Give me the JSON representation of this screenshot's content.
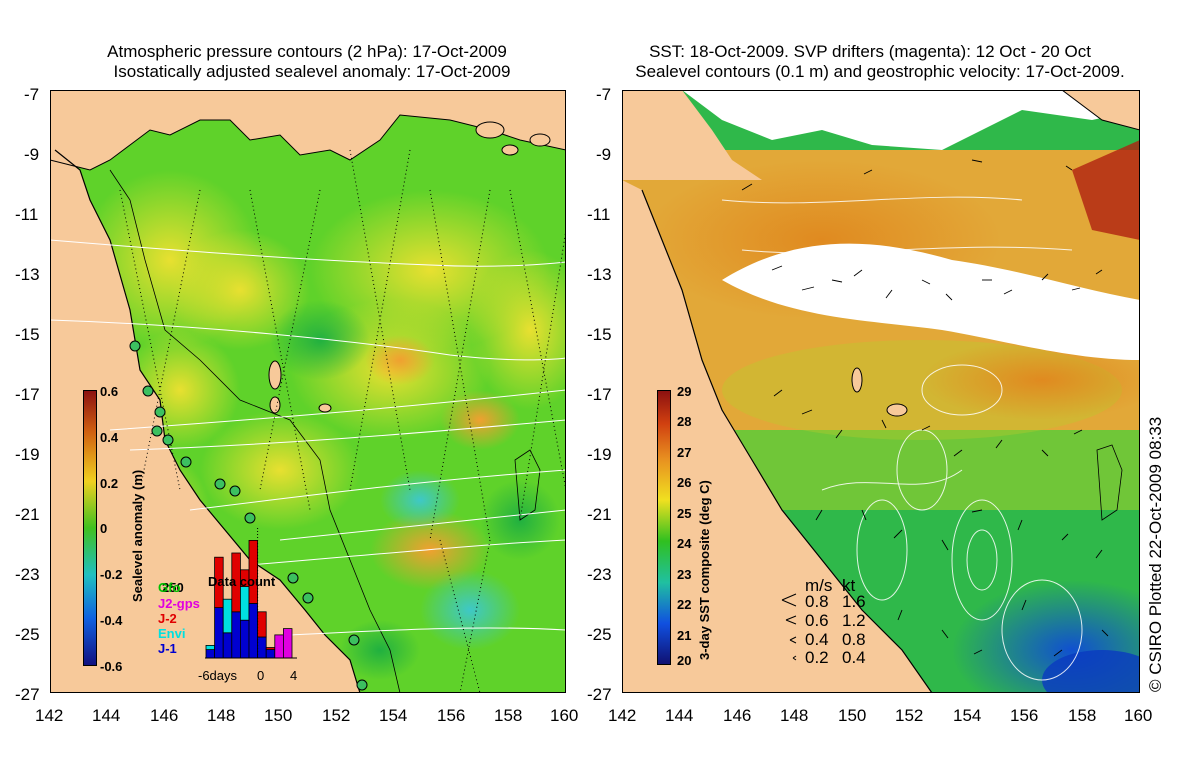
{
  "left_panel": {
    "title_line1": "Atmospheric pressure contours (2 hPa): 17-Oct-2009",
    "title_line2": "Isostatically adjusted sealevel anomaly: 17-Oct-2009",
    "colorbar": {
      "label": "Sealevel anomaly (m)",
      "ticks": [
        "0.6",
        "0.4",
        "0.2",
        "0",
        "-0.2",
        "-0.4",
        "-0.6"
      ]
    },
    "data_count": {
      "title": "Data count",
      "max_label": "250",
      "x_ticks": [
        "-6days",
        "0",
        "4"
      ],
      "legend": [
        {
          "label": "Gfo",
          "color": "#00c000"
        },
        {
          "label": "J2-gps",
          "color": "#e000e0"
        },
        {
          "label": "J-2",
          "color": "#e00000"
        },
        {
          "label": "Envi",
          "color": "#00e0e0"
        },
        {
          "label": "J-1",
          "color": "#0000d0"
        }
      ],
      "bars": [
        {
          "day": -6,
          "segments": [
            {
              "sat": "J-1",
              "value": 20
            },
            {
              "sat": "Envi",
              "value": 10
            }
          ]
        },
        {
          "day": -5,
          "segments": [
            {
              "sat": "J-1",
              "value": 120
            },
            {
              "sat": "J-2",
              "value": 120
            }
          ]
        },
        {
          "day": -4,
          "segments": [
            {
              "sat": "J-1",
              "value": 60
            },
            {
              "sat": "Envi",
              "value": 80
            }
          ]
        },
        {
          "day": -3,
          "segments": [
            {
              "sat": "J-1",
              "value": 110
            },
            {
              "sat": "J-2",
              "value": 140
            }
          ]
        },
        {
          "day": -2,
          "segments": [
            {
              "sat": "J-1",
              "value": 90
            },
            {
              "sat": "Envi",
              "value": 80
            },
            {
              "sat": "J-2",
              "value": 40
            }
          ]
        },
        {
          "day": -1,
          "segments": [
            {
              "sat": "J-1",
              "value": 130
            },
            {
              "sat": "J-2",
              "value": 150
            }
          ]
        },
        {
          "day": 0,
          "segments": [
            {
              "sat": "J-1",
              "value": 50
            },
            {
              "sat": "J-2",
              "value": 60
            }
          ]
        },
        {
          "day": 1,
          "segments": [
            {
              "sat": "J-1",
              "value": 20
            },
            {
              "sat": "J-2",
              "value": 5
            }
          ]
        },
        {
          "day": 2,
          "segments": [
            {
              "sat": "J2-gps",
              "value": 55
            }
          ]
        },
        {
          "day": 3,
          "segments": [
            {
              "sat": "J2-gps",
              "value": 70
            }
          ]
        }
      ]
    }
  },
  "right_panel": {
    "title_line1": "SST: 18-Oct-2009. SVP drifters (magenta): 12 Oct - 20 Oct",
    "title_line2": "Sealevel contours (0.1 m) and geostrophic velocity: 17-Oct-2009.",
    "colorbar": {
      "label": "3-day SST composite (deg C)",
      "ticks": [
        "29",
        "28",
        "27",
        "26",
        "25",
        "24",
        "23",
        "22",
        "21",
        "20"
      ]
    },
    "velocity_key": {
      "header_ms": "m/s",
      "header_kt": "kt",
      "rows": [
        {
          "ms": "0.8",
          "kt": "1.6"
        },
        {
          "ms": "0.6",
          "kt": "1.2"
        },
        {
          "ms": "0.4",
          "kt": "0.8"
        },
        {
          "ms": "0.2",
          "kt": "0.4"
        }
      ]
    }
  },
  "axes": {
    "lat_ticks": [
      "-7",
      "-9",
      "-11",
      "-13",
      "-15",
      "-17",
      "-19",
      "-21",
      "-23",
      "-25",
      "-27"
    ],
    "lon_ticks": [
      "142",
      "144",
      "146",
      "148",
      "150",
      "152",
      "154",
      "156",
      "158",
      "160"
    ]
  },
  "credit": "© CSIRO Plotted 22-Oct-2009 08:33",
  "colors": {
    "land": "#f7c99a",
    "sla_background": "#5fd22a",
    "sst_background": "#2fb84a",
    "cloud": "#ffffff"
  }
}
